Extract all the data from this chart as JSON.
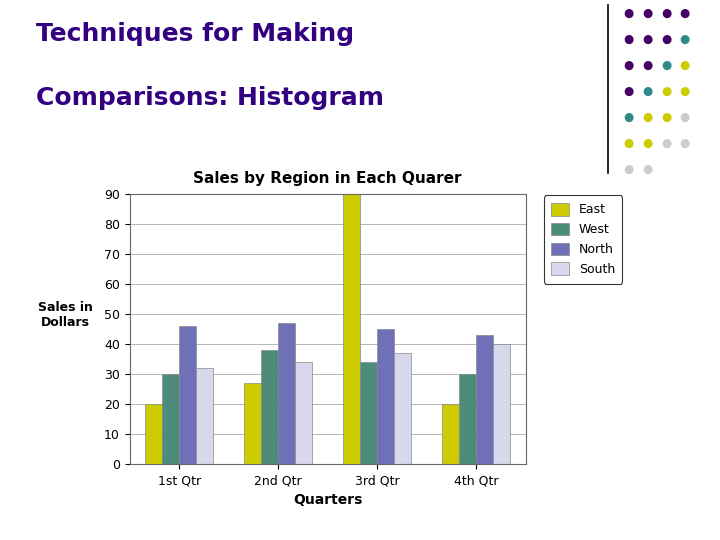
{
  "title_line1": "Techniques for Making",
  "title_line2": "Comparisons: Histogram",
  "chart_title": "Sales by Region in Each Quarer",
  "xlabel": "Quarters",
  "ylabel": "Sales in\nDollars",
  "categories": [
    "1st Qtr",
    "2nd Qtr",
    "3rd Qtr",
    "4th Qtr"
  ],
  "series": {
    "East": [
      20,
      27,
      90,
      20
    ],
    "West": [
      30,
      38,
      34,
      30
    ],
    "North": [
      46,
      47,
      45,
      43
    ],
    "South": [
      32,
      34,
      37,
      40
    ]
  },
  "colors": {
    "East": "#cccc00",
    "West": "#4d8c7a",
    "North": "#7070b8",
    "South": "#d8d8ec"
  },
  "ylim": [
    0,
    90
  ],
  "yticks": [
    0,
    10,
    20,
    30,
    40,
    50,
    60,
    70,
    80,
    90
  ],
  "background_color": "#ffffff",
  "title_color": "#330080",
  "title_fontsize": 18,
  "chart_title_fontsize": 11,
  "axis_label_fontsize": 9,
  "tick_fontsize": 9,
  "legend_fontsize": 9,
  "dot_grid": [
    [
      "#440066",
      "#440066",
      "#440066"
    ],
    [
      "#440066",
      "#440066",
      "#440066"
    ],
    [
      "#440066",
      "#440066",
      "#338888",
      "#cccc00"
    ],
    [
      "#440066",
      "#338888",
      "#338888",
      "#cccc00"
    ],
    [
      "#338888",
      "#338888",
      "#cccc00",
      "#cccc00",
      "#cccccc"
    ],
    [
      "#338888",
      "#cccc00",
      "#cccc00",
      "#cccccc",
      "#cccccc"
    ],
    [
      "#cccc00",
      "#cccc00",
      "#cccccc",
      "#cccccc"
    ],
    [
      "#cccccc",
      "#cccccc"
    ]
  ]
}
